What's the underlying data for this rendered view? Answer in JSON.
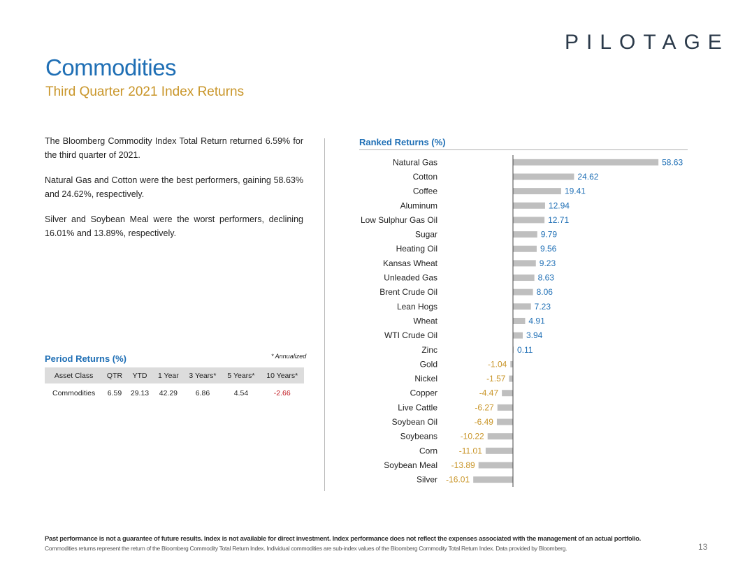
{
  "header": {
    "logo_text": "PILOTAGE",
    "title": "Commodities",
    "subtitle": "Third Quarter 2021 Index Returns"
  },
  "commentary": [
    "The Bloomberg Commodity Index Total Return returned 6.59% for the third quarter of 2021.",
    "Natural Gas and Cotton were the best performers, gaining 58.63% and 24.62%, respectively.",
    "Silver and Soybean Meal were the worst performers, declining 16.01% and 13.89%, respectively."
  ],
  "period_returns": {
    "title": "Period Returns (%)",
    "annotation": "* Annualized",
    "columns": [
      "Asset Class",
      "QTR",
      "YTD",
      "1 Year",
      "3 Years*",
      "5 Years*",
      "10 Years*"
    ],
    "rows": [
      [
        "Commodities",
        "6.59",
        "29.13",
        "42.29",
        "6.86",
        "4.54",
        "-2.66"
      ]
    ]
  },
  "chart_data": {
    "type": "bar",
    "orientation": "horizontal",
    "title": "Ranked Returns (%)",
    "categories": [
      "Natural Gas",
      "Cotton",
      "Coffee",
      "Aluminum",
      "Low Sulphur Gas Oil",
      "Sugar",
      "Heating Oil",
      "Kansas Wheat",
      "Unleaded Gas",
      "Brent Crude Oil",
      "Lean Hogs",
      "Wheat",
      "WTI Crude Oil",
      "Zinc",
      "Gold",
      "Nickel",
      "Copper",
      "Live Cattle",
      "Soybean Oil",
      "Soybeans",
      "Corn",
      "Soybean Meal",
      "Silver"
    ],
    "values": [
      58.63,
      24.62,
      19.41,
      12.94,
      12.71,
      9.79,
      9.56,
      9.23,
      8.63,
      8.06,
      7.23,
      4.91,
      3.94,
      0.11,
      -1.04,
      -1.57,
      -4.47,
      -6.27,
      -6.49,
      -10.22,
      -11.01,
      -13.89,
      -16.01
    ],
    "value_labels": [
      "58.63",
      "24.62",
      "19.41",
      "12.94",
      "12.71",
      "9.79",
      "9.56",
      "9.23",
      "8.63",
      "8.06",
      "7.23",
      "4.91",
      "3.94",
      "0.11",
      "-1.04",
      "-1.57",
      "-4.47",
      "-6.27",
      "-6.49",
      "-10.22",
      "-11.01",
      "-13.89",
      "-16.01"
    ],
    "xlim": [
      -17,
      59
    ],
    "colors": {
      "bar": "#bfbfbf",
      "positive_label": "#1f6fb5",
      "negative_label": "#c9962a",
      "axis": "#444444"
    }
  },
  "footer": {
    "disclaimer": "Past performance is not a guarantee of future results. Index is not available for direct investment. Index performance does not reflect the expenses associated with the management of an actual portfolio.",
    "note": "Commodities returns represent the return of the Bloomberg Commodity Total Return Index. Individual commodities are sub-index values of the Bloomberg Commodity Total Return Index. Data provided by Bloomberg.",
    "page_number": "13"
  }
}
